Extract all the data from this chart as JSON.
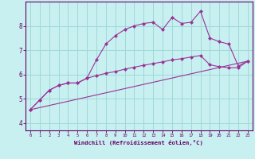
{
  "xlabel": "Windchill (Refroidissement éolien,°C)",
  "bg_color": "#c8f0f0",
  "line_color": "#993399",
  "grid_color": "#a0d8d8",
  "axis_color": "#660066",
  "text_color": "#660066",
  "xlim": [
    -0.5,
    23.5
  ],
  "ylim": [
    3.7,
    9.0
  ],
  "xticks": [
    0,
    1,
    2,
    3,
    4,
    5,
    6,
    7,
    8,
    9,
    10,
    11,
    12,
    13,
    14,
    15,
    16,
    17,
    18,
    19,
    20,
    21,
    22,
    23
  ],
  "yticks": [
    4,
    5,
    6,
    7,
    8
  ],
  "line1_x": [
    0,
    1,
    2,
    3,
    4,
    5,
    6,
    7,
    8,
    9,
    10,
    11,
    12,
    13,
    14,
    15,
    16,
    17,
    18,
    19,
    20,
    21,
    22,
    23
  ],
  "line1_y": [
    4.55,
    4.95,
    5.35,
    5.55,
    5.65,
    5.65,
    5.85,
    6.6,
    7.25,
    7.6,
    7.85,
    8.0,
    8.1,
    8.15,
    7.85,
    8.35,
    8.1,
    8.15,
    8.6,
    7.5,
    7.35,
    7.25,
    6.35,
    6.55
  ],
  "line2_x": [
    0,
    1,
    2,
    3,
    4,
    5,
    6,
    7,
    8,
    9,
    10,
    11,
    12,
    13,
    14,
    15,
    16,
    17,
    18,
    19,
    20,
    21,
    22,
    23
  ],
  "line2_y": [
    4.55,
    4.95,
    5.35,
    5.55,
    5.65,
    5.65,
    5.85,
    5.95,
    6.05,
    6.12,
    6.22,
    6.3,
    6.38,
    6.45,
    6.52,
    6.6,
    6.65,
    6.72,
    6.78,
    6.4,
    6.32,
    6.28,
    6.28,
    6.55
  ],
  "line3_x": [
    0,
    23
  ],
  "line3_y": [
    4.55,
    6.55
  ],
  "marker": "D",
  "markersize": 2.0,
  "linewidth": 0.8,
  "xlabel_fontsize": 5.2,
  "tick_fontsize_x": 4.0,
  "tick_fontsize_y": 5.5
}
